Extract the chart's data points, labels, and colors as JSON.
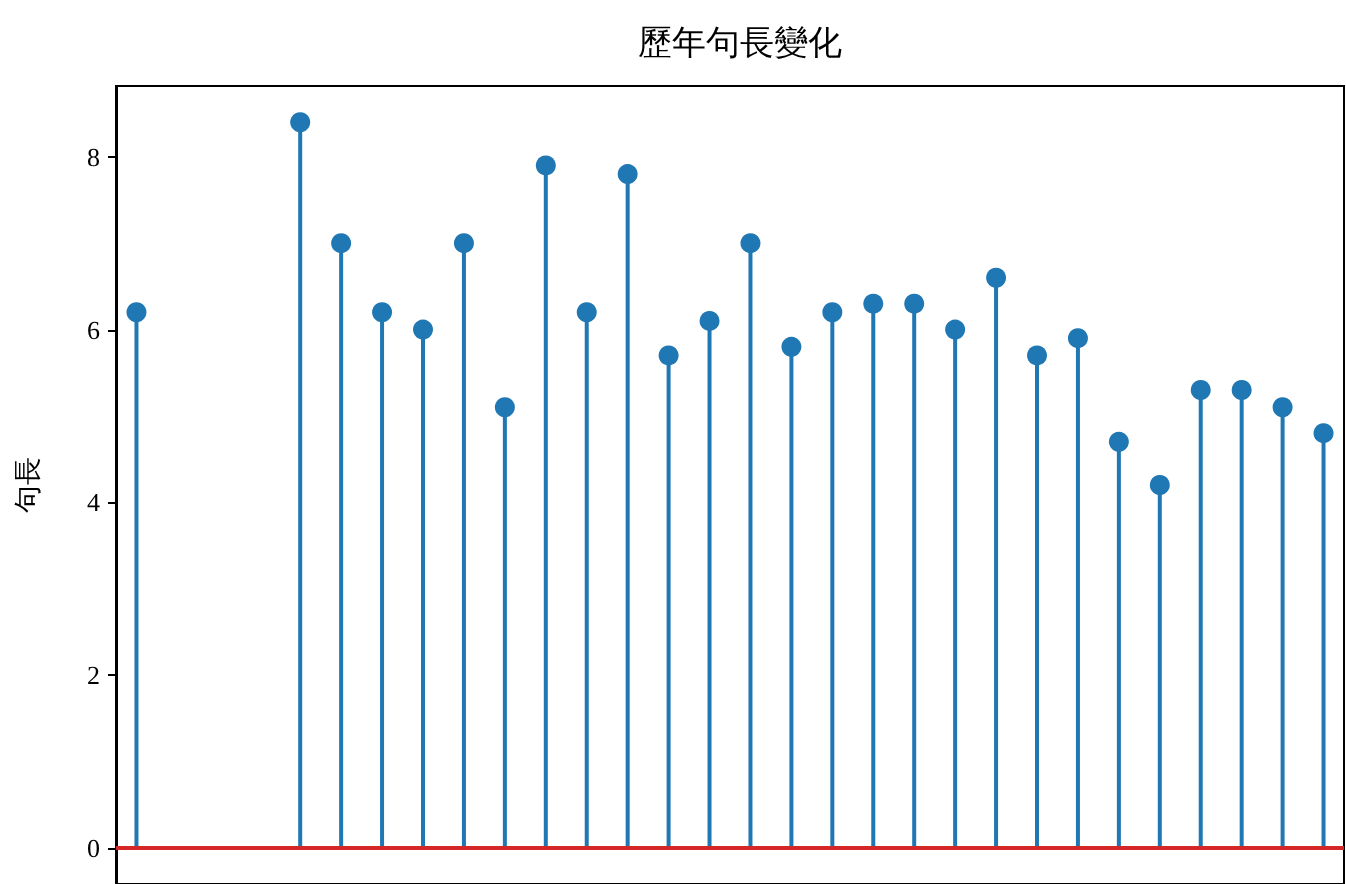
{
  "chart_data": {
    "type": "lollipop",
    "title": "歷年句長變化",
    "ylabel": "句長",
    "categories": [
      null,
      null,
      null,
      null,
      null,
      null,
      null,
      null,
      null,
      null,
      null,
      null,
      null,
      null,
      null,
      null,
      null,
      null,
      null,
      null,
      null,
      null,
      null,
      null,
      null,
      null,
      null,
      null,
      null,
      null
    ],
    "series": [
      {
        "color": "#1f77b4",
        "values": [
          6.2,
          null,
          null,
          null,
          8.4,
          7.0,
          6.2,
          6.0,
          7.0,
          5.1,
          7.9,
          6.2,
          7.8,
          5.7,
          6.1,
          7.0,
          5.8,
          6.2,
          6.3,
          6.3,
          6.0,
          6.6,
          5.7,
          5.9,
          4.7,
          4.2,
          5.3,
          5.3,
          5.1,
          4.8
        ]
      }
    ],
    "ylim": [
      -0.42,
      8.82
    ],
    "yticks": [
      0,
      2,
      4,
      6,
      8
    ],
    "tick_labels": "y",
    "marker": "circle",
    "grid": false,
    "ref_lines": [
      {
        "axis": "y",
        "value": 0,
        "color": "#d62728"
      }
    ]
  }
}
